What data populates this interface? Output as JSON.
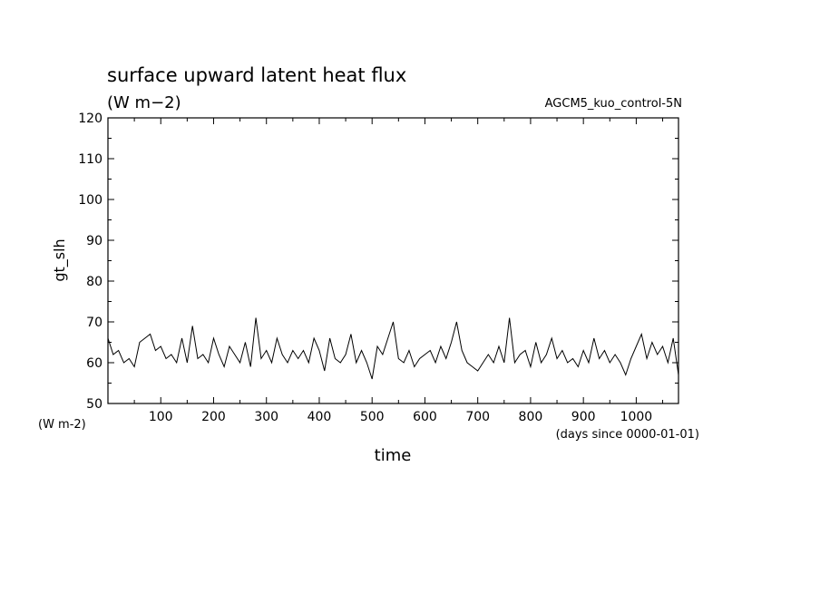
{
  "chart_data": {
    "type": "line",
    "title": "surface upward latent heat flux",
    "subtitle": "(W m−2)",
    "run_label": "AGCM5_kuo_control-5N",
    "ylabel": "gt_slh",
    "y_unit_label": "(W m-2)",
    "xlabel": "time",
    "x_unit_label": "(days since 0000-01-01)",
    "xlim": [
      0,
      1080
    ],
    "ylim": [
      50,
      120
    ],
    "x_ticks": [
      100,
      200,
      300,
      400,
      500,
      600,
      700,
      800,
      900,
      1000
    ],
    "y_ticks": [
      50,
      60,
      70,
      80,
      90,
      100,
      110,
      120
    ],
    "grid": false,
    "series": [
      {
        "color": "#000000",
        "x": [
          0,
          10,
          20,
          30,
          40,
          50,
          60,
          70,
          80,
          90,
          100,
          110,
          120,
          130,
          140,
          150,
          160,
          170,
          180,
          190,
          200,
          210,
          220,
          230,
          240,
          250,
          260,
          270,
          280,
          290,
          300,
          310,
          320,
          330,
          340,
          350,
          360,
          370,
          380,
          390,
          400,
          410,
          420,
          430,
          440,
          450,
          460,
          470,
          480,
          490,
          500,
          510,
          520,
          530,
          540,
          550,
          560,
          570,
          580,
          590,
          600,
          610,
          620,
          630,
          640,
          650,
          660,
          670,
          680,
          690,
          700,
          710,
          720,
          730,
          740,
          750,
          760,
          770,
          780,
          790,
          800,
          810,
          820,
          830,
          840,
          850,
          860,
          870,
          880,
          890,
          900,
          910,
          920,
          930,
          940,
          950,
          960,
          970,
          980,
          990,
          1000,
          1010,
          1020,
          1030,
          1040,
          1050,
          1060,
          1070,
          1080
        ],
        "values": [
          66,
          62,
          63,
          60,
          61,
          59,
          65,
          66,
          67,
          63,
          64,
          61,
          62,
          60,
          66,
          60,
          69,
          61,
          62,
          60,
          66,
          62,
          59,
          64,
          62,
          60,
          65,
          59,
          71,
          61,
          63,
          60,
          66,
          62,
          60,
          63,
          61,
          63,
          60,
          66,
          63,
          58,
          66,
          61,
          60,
          62,
          67,
          60,
          63,
          60,
          56,
          64,
          62,
          66,
          70,
          61,
          60,
          63,
          59,
          61,
          62,
          63,
          60,
          64,
          61,
          65,
          70,
          63,
          60,
          59,
          58,
          60,
          62,
          60,
          64,
          60,
          71,
          60,
          62,
          63,
          59,
          65,
          60,
          62,
          66,
          61,
          63,
          60,
          61,
          59,
          63,
          60,
          66,
          61,
          63,
          60,
          62,
          60,
          57,
          61,
          64,
          67,
          61,
          65,
          62,
          64,
          60,
          66,
          57
        ]
      }
    ]
  }
}
